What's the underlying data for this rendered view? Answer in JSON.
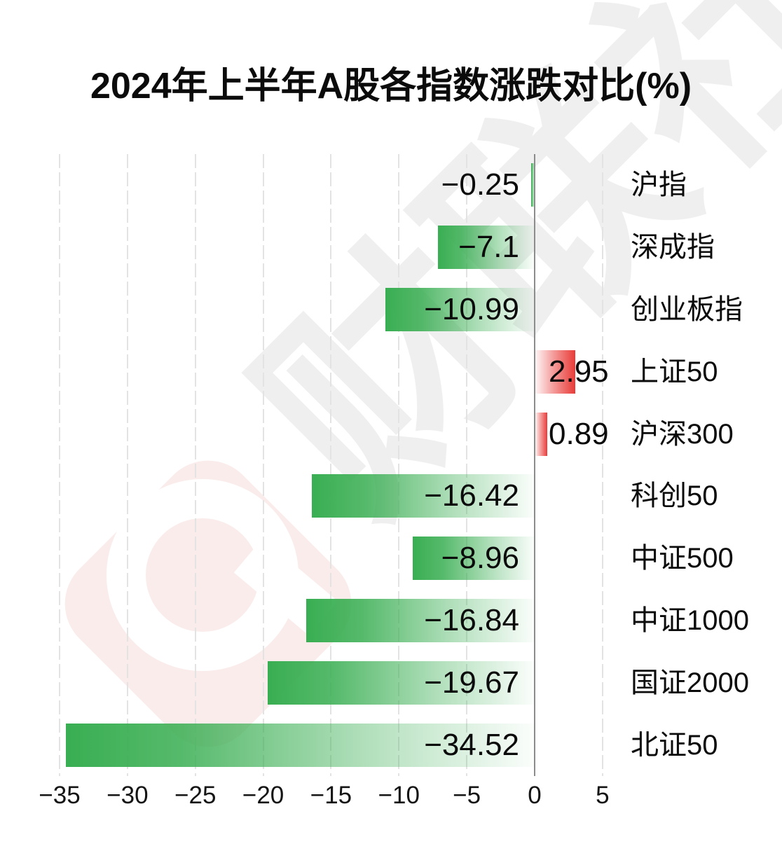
{
  "title": "2024年上半年A股各指数涨跌对比(%)",
  "watermark": {
    "text": "财联社",
    "logo": "cailian-press-logo",
    "text_color": "#efefef",
    "logo_pink": "#fbecec"
  },
  "colors": {
    "negative_bar": "#39ae52",
    "positive_bar": "#e83b38",
    "zero_axis": "#8c8c8c",
    "gridline": "#e3e3e3",
    "text": "#0b0b0b"
  },
  "chart_data": {
    "type": "bar",
    "orientation": "horizontal",
    "title": "2024年上半年A股各指数涨跌对比(%)",
    "categories": [
      "沪指",
      "深成指",
      "创业板指",
      "上证50",
      "沪深300",
      "科创50",
      "中证500",
      "中证1000",
      "国证2000",
      "北证50"
    ],
    "values": [
      -0.25,
      -7.1,
      -10.99,
      2.95,
      0.89,
      -16.42,
      -8.96,
      -16.84,
      -19.67,
      -34.52
    ],
    "value_labels": [
      "−0.25",
      "−7.1",
      "−10.99",
      "2.95",
      "0.89",
      "−16.42",
      "−8.96",
      "−16.84",
      "−19.67",
      "−34.52"
    ],
    "xlim": [
      -35,
      5
    ],
    "x_ticks": [
      -35,
      -30,
      -25,
      -20,
      -15,
      -10,
      -5,
      0,
      5
    ],
    "x_tick_labels": [
      "−35",
      "−30",
      "−25",
      "−20",
      "−15",
      "−10",
      "−5",
      "0",
      "5"
    ],
    "grid": "vertical-dashed",
    "legend": "none",
    "bar_gradient": "fades to white toward zero axis"
  }
}
